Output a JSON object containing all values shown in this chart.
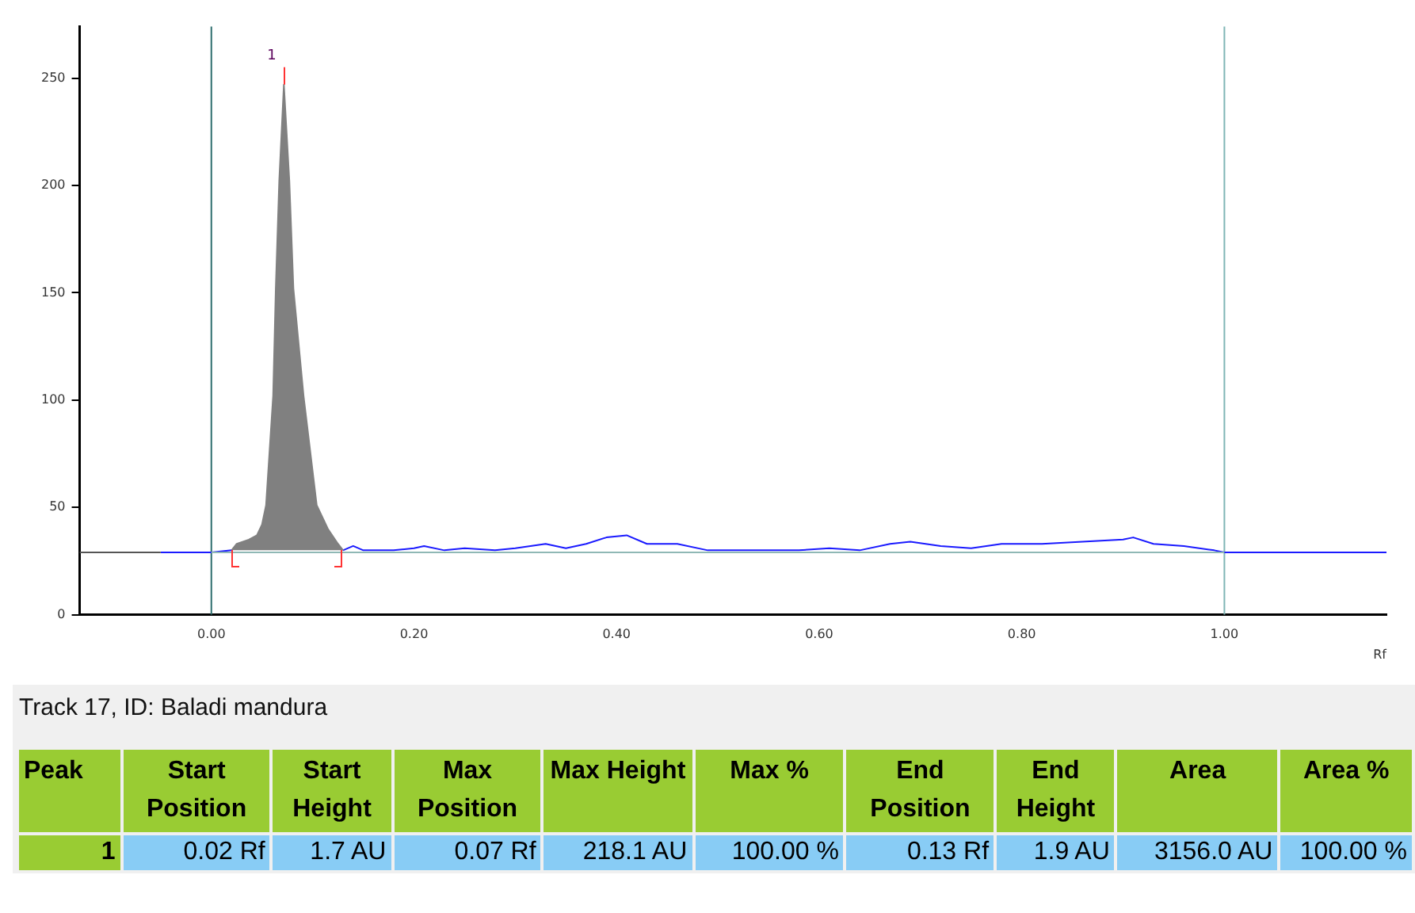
{
  "chart_data": [
    {
      "type": "line",
      "xlabel": "Rf",
      "xlim": [
        -0.13,
        1.16
      ],
      "ylim": [
        0,
        274
      ],
      "xticks": [
        {
          "value": 0,
          "label": "0.00"
        },
        {
          "value": 0.2,
          "label": "0.20"
        },
        {
          "value": 0.4,
          "label": "0.40"
        },
        {
          "value": 0.6,
          "label": "0.60"
        },
        {
          "value": 0.8,
          "label": "0.80"
        },
        {
          "value": 1,
          "label": "1.00"
        }
      ],
      "yticks": [
        0,
        50,
        100,
        150,
        200,
        250
      ],
      "grid": false,
      "legend": false,
      "marker": "none",
      "line_style": "solid",
      "ref_lines": [
        {
          "axis": "x",
          "value": 0,
          "color": "#2f6f6f"
        },
        {
          "axis": "x",
          "value": 1,
          "color": "#7fb5b5"
        }
      ],
      "annotations": [
        "1"
      ],
      "series": [
        {
          "color": "#555555",
          "x": [
            -0.13,
            -0.05
          ],
          "values": [
            29,
            29
          ]
        },
        {
          "color": "#8fb8b5",
          "x": [
            0,
            1
          ],
          "values": [
            29,
            29
          ]
        },
        {
          "color": "#1a1aff",
          "x": [
            -0.05,
            0,
            0.02,
            0.025,
            0.037,
            0.045,
            0.05,
            0.054,
            0.061,
            0.0636,
            0.067,
            0.0716,
            0.077,
            0.081,
            0.091,
            0.104,
            0.115,
            0.125,
            0.13,
            0.14,
            0.15,
            0.18,
            0.2,
            0.21,
            0.23,
            0.25,
            0.28,
            0.3,
            0.33,
            0.35,
            0.37,
            0.39,
            0.41,
            0.43,
            0.46,
            0.49,
            0.52,
            0.55,
            0.58,
            0.61,
            0.64,
            0.67,
            0.69,
            0.72,
            0.75,
            0.78,
            0.82,
            0.86,
            0.9,
            0.91,
            0.93,
            0.96,
            0.99,
            1,
            1.16
          ],
          "values": [
            29,
            29,
            30,
            null,
            null,
            null,
            null,
            null,
            null,
            null,
            null,
            null,
            null,
            null,
            null,
            null,
            null,
            null,
            30,
            32,
            30,
            30,
            31,
            32,
            30,
            31,
            30,
            31,
            33,
            31,
            33,
            36,
            37,
            33,
            33,
            30,
            30,
            30,
            30,
            31,
            30,
            33,
            34,
            32,
            31,
            33,
            33,
            34,
            35,
            36,
            33,
            32,
            30,
            29,
            29
          ]
        },
        {
          "type": "area",
          "color": "#808080",
          "x": [
            0.02,
            0.025,
            0.037,
            0.045,
            0.05,
            0.054,
            0.061,
            0.0636,
            0.067,
            0.0716,
            0.077,
            0.081,
            0.091,
            0.104,
            0.115,
            0.125,
            0.13
          ],
          "values": [
            30,
            33,
            35,
            37,
            42,
            51,
            102,
            152,
            202,
            247,
            202,
            152,
            102,
            51,
            40,
            33,
            30
          ]
        }
      ]
    },
    {
      "type": "other",
      "title": "Track 17, ID: Baladi mandura",
      "categories": [
        "Peak",
        "Start Position",
        "Start Height",
        "Max Position",
        "Max Height",
        "Max %",
        "End Position",
        "End Height",
        "Area",
        "Area %"
      ],
      "value_labels": [
        "1",
        "0.02 Rf",
        "1.7 AU",
        "0.07 Rf",
        "218.1 AU",
        "100.00 %",
        "0.13 Rf",
        "1.9 AU",
        "3156.0 AU",
        "100.00 %"
      ]
    }
  ]
}
